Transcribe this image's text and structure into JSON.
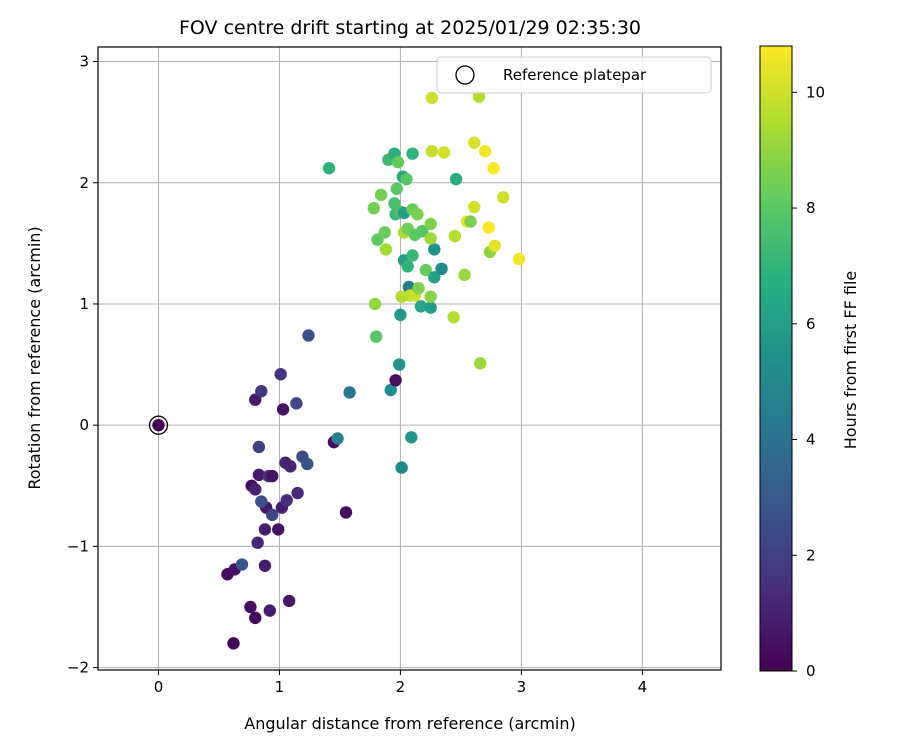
{
  "chart_data": {
    "type": "scatter",
    "title": "FOV centre drift starting at 2025/01/29 02:35:30",
    "xlabel": "Angular distance from reference (arcmin)",
    "ylabel": "Rotation from reference (arcmin)",
    "xlim": [
      -0.5,
      4.65
    ],
    "ylim": [
      -2.02,
      3.12
    ],
    "xticks": [
      0,
      1,
      2,
      3,
      4
    ],
    "yticks": [
      -2,
      -1,
      0,
      1,
      2,
      3
    ],
    "grid": true,
    "legend": {
      "label": "Reference platepar",
      "placement": "top-right"
    },
    "colorbar": {
      "label": "Hours from first FF file",
      "range": [
        0,
        10.8
      ],
      "ticks": [
        0,
        2,
        4,
        6,
        8,
        10
      ],
      "colormap": "viridis"
    },
    "reference_point": {
      "x": 0,
      "y": 0
    },
    "points": [
      {
        "x": 0.62,
        "y": -1.8,
        "h": 0.2
      },
      {
        "x": 0.57,
        "y": -1.23,
        "h": 0.3
      },
      {
        "x": 0.63,
        "y": -1.19,
        "h": 0.5
      },
      {
        "x": 0.69,
        "y": -1.15,
        "h": 2.8
      },
      {
        "x": 0.76,
        "y": -1.5,
        "h": 0.4
      },
      {
        "x": 0.8,
        "y": -1.59,
        "h": 0.3
      },
      {
        "x": 0.92,
        "y": -1.53,
        "h": 0.8
      },
      {
        "x": 1.08,
        "y": -1.45,
        "h": 0.7
      },
      {
        "x": 0.88,
        "y": -1.16,
        "h": 0.9
      },
      {
        "x": 0.82,
        "y": -0.97,
        "h": 1.2
      },
      {
        "x": 0.88,
        "y": -0.86,
        "h": 0.9
      },
      {
        "x": 0.99,
        "y": -0.86,
        "h": 0.6
      },
      {
        "x": 0.89,
        "y": -0.68,
        "h": 0.7
      },
      {
        "x": 0.94,
        "y": -0.74,
        "h": 2.2
      },
      {
        "x": 0.85,
        "y": -0.63,
        "h": 2.6
      },
      {
        "x": 0.77,
        "y": -0.5,
        "h": 0.4
      },
      {
        "x": 0.8,
        "y": -0.53,
        "h": 1.0
      },
      {
        "x": 0.83,
        "y": -0.41,
        "h": 0.8
      },
      {
        "x": 0.91,
        "y": -0.42,
        "h": 1.5
      },
      {
        "x": 0.94,
        "y": -0.42,
        "h": 0.6
      },
      {
        "x": 1.02,
        "y": -0.68,
        "h": 0.9
      },
      {
        "x": 1.06,
        "y": -0.62,
        "h": 1.4
      },
      {
        "x": 1.15,
        "y": -0.56,
        "h": 1.3
      },
      {
        "x": 1.05,
        "y": -0.31,
        "h": 1.1
      },
      {
        "x": 1.09,
        "y": -0.34,
        "h": 1.0
      },
      {
        "x": 1.19,
        "y": -0.26,
        "h": 2.4
      },
      {
        "x": 1.23,
        "y": -0.32,
        "h": 2.8
      },
      {
        "x": 0.83,
        "y": -0.18,
        "h": 2.1
      },
      {
        "x": 0.8,
        "y": 0.21,
        "h": 0.7
      },
      {
        "x": 0.85,
        "y": 0.28,
        "h": 1.8
      },
      {
        "x": 1.01,
        "y": 0.42,
        "h": 1.6
      },
      {
        "x": 1.03,
        "y": 0.13,
        "h": 0.6
      },
      {
        "x": 1.14,
        "y": 0.18,
        "h": 2.3
      },
      {
        "x": 1.24,
        "y": 0.74,
        "h": 2.6
      },
      {
        "x": 1.45,
        "y": -0.14,
        "h": 0.3
      },
      {
        "x": 1.48,
        "y": -0.11,
        "h": 4.6
      },
      {
        "x": 1.55,
        "y": -0.72,
        "h": 0.4
      },
      {
        "x": 1.58,
        "y": 0.27,
        "h": 4.2
      },
      {
        "x": 1.92,
        "y": 0.29,
        "h": 5.2
      },
      {
        "x": 1.96,
        "y": 0.37,
        "h": 0.4
      },
      {
        "x": 1.99,
        "y": 0.5,
        "h": 5.5
      },
      {
        "x": 2.01,
        "y": -0.35,
        "h": 5.1
      },
      {
        "x": 2.09,
        "y": -0.1,
        "h": 5.6
      },
      {
        "x": 2.0,
        "y": 0.91,
        "h": 5.7
      },
      {
        "x": 1.41,
        "y": 2.12,
        "h": 6.9
      },
      {
        "x": 1.79,
        "y": 1.0,
        "h": 9.0
      },
      {
        "x": 1.8,
        "y": 0.73,
        "h": 8.0
      },
      {
        "x": 1.78,
        "y": 1.79,
        "h": 8.4
      },
      {
        "x": 1.81,
        "y": 1.53,
        "h": 8.1
      },
      {
        "x": 1.84,
        "y": 1.9,
        "h": 8.5
      },
      {
        "x": 1.87,
        "y": 1.59,
        "h": 8.3
      },
      {
        "x": 1.88,
        "y": 1.45,
        "h": 9.3
      },
      {
        "x": 1.9,
        "y": 2.19,
        "h": 7.3
      },
      {
        "x": 1.95,
        "y": 2.24,
        "h": 6.8
      },
      {
        "x": 1.95,
        "y": 1.83,
        "h": 7.6
      },
      {
        "x": 1.97,
        "y": 1.95,
        "h": 8.0
      },
      {
        "x": 1.98,
        "y": 2.17,
        "h": 8.2
      },
      {
        "x": 2.02,
        "y": 2.05,
        "h": 6.4
      },
      {
        "x": 2.05,
        "y": 2.03,
        "h": 7.9
      },
      {
        "x": 1.96,
        "y": 1.74,
        "h": 7.2
      },
      {
        "x": 2.0,
        "y": 1.76,
        "h": 7.7
      },
      {
        "x": 2.03,
        "y": 1.75,
        "h": 6.1
      },
      {
        "x": 2.03,
        "y": 1.59,
        "h": 9.4
      },
      {
        "x": 2.06,
        "y": 1.62,
        "h": 8.4
      },
      {
        "x": 2.1,
        "y": 1.78,
        "h": 8.3
      },
      {
        "x": 2.14,
        "y": 1.74,
        "h": 8.6
      },
      {
        "x": 2.12,
        "y": 1.57,
        "h": 8.1
      },
      {
        "x": 2.18,
        "y": 1.6,
        "h": 7.9
      },
      {
        "x": 2.1,
        "y": 2.24,
        "h": 6.9
      },
      {
        "x": 2.03,
        "y": 1.36,
        "h": 6.0
      },
      {
        "x": 2.06,
        "y": 1.31,
        "h": 7.0
      },
      {
        "x": 2.1,
        "y": 1.4,
        "h": 7.2
      },
      {
        "x": 2.07,
        "y": 1.14,
        "h": 4.5
      },
      {
        "x": 2.01,
        "y": 1.06,
        "h": 9.6
      },
      {
        "x": 2.08,
        "y": 1.07,
        "h": 9.7
      },
      {
        "x": 2.12,
        "y": 1.07,
        "h": 9.9
      },
      {
        "x": 2.15,
        "y": 1.13,
        "h": 8.7
      },
      {
        "x": 2.17,
        "y": 0.98,
        "h": 6.3
      },
      {
        "x": 2.25,
        "y": 0.97,
        "h": 5.9
      },
      {
        "x": 2.21,
        "y": 1.28,
        "h": 8.2
      },
      {
        "x": 2.25,
        "y": 1.06,
        "h": 8.8
      },
      {
        "x": 2.28,
        "y": 1.22,
        "h": 6.2
      },
      {
        "x": 2.28,
        "y": 1.45,
        "h": 5.5
      },
      {
        "x": 2.34,
        "y": 1.29,
        "h": 5.2
      },
      {
        "x": 2.25,
        "y": 1.54,
        "h": 9.2
      },
      {
        "x": 2.25,
        "y": 1.66,
        "h": 8.7
      },
      {
        "x": 2.26,
        "y": 2.26,
        "h": 9.8
      },
      {
        "x": 2.26,
        "y": 2.7,
        "h": 10.0
      },
      {
        "x": 2.36,
        "y": 2.25,
        "h": 10.1
      },
      {
        "x": 2.44,
        "y": 0.89,
        "h": 9.6
      },
      {
        "x": 2.45,
        "y": 1.56,
        "h": 9.6
      },
      {
        "x": 2.46,
        "y": 2.03,
        "h": 6.6
      },
      {
        "x": 2.53,
        "y": 1.24,
        "h": 9.1
      },
      {
        "x": 2.55,
        "y": 1.68,
        "h": 10.4
      },
      {
        "x": 2.58,
        "y": 1.68,
        "h": 8.6
      },
      {
        "x": 2.61,
        "y": 1.8,
        "h": 10.1
      },
      {
        "x": 2.61,
        "y": 2.33,
        "h": 10.2
      },
      {
        "x": 2.65,
        "y": 2.71,
        "h": 9.6
      },
      {
        "x": 2.66,
        "y": 0.51,
        "h": 9.2
      },
      {
        "x": 2.7,
        "y": 2.26,
        "h": 10.6
      },
      {
        "x": 2.73,
        "y": 1.63,
        "h": 10.7
      },
      {
        "x": 2.74,
        "y": 1.43,
        "h": 8.9
      },
      {
        "x": 2.77,
        "y": 2.12,
        "h": 10.8
      },
      {
        "x": 2.78,
        "y": 1.48,
        "h": 10.4
      },
      {
        "x": 2.85,
        "y": 1.88,
        "h": 10.0
      },
      {
        "x": 2.98,
        "y": 1.37,
        "h": 10.6
      }
    ]
  }
}
